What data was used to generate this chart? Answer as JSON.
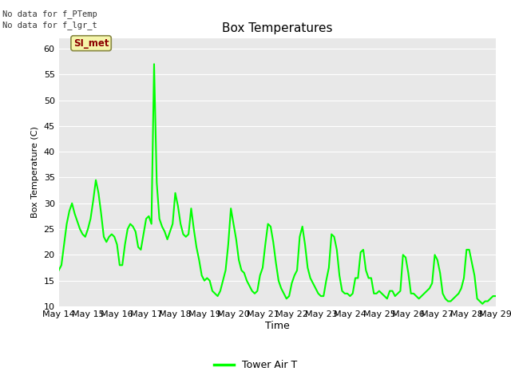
{
  "title": "Box Temperatures",
  "ylabel": "Box Temperature (C)",
  "xlabel": "Time",
  "ylim": [
    10,
    62
  ],
  "yticks": [
    10,
    15,
    20,
    25,
    30,
    35,
    40,
    45,
    50,
    55,
    60
  ],
  "plot_bg_color": "#e8e8e8",
  "fig_bg_color": "#ffffff",
  "line_color": "#00ff00",
  "line_width": 1.5,
  "no_data_text1": "No data for f_PTemp",
  "no_data_text2": "No data for f_lgr_t",
  "label_text": "SI_met",
  "legend_label": "Tower Air T",
  "x_tick_labels": [
    "May 14",
    "May 15",
    "May 16",
    "May 17",
    "May 18",
    "May 19",
    "May 20",
    "May 21",
    "May 22",
    "May 23",
    "May 24",
    "May 25",
    "May 26",
    "May 27",
    "May 28",
    "May 29"
  ],
  "tower_air_t": [
    17.0,
    18.0,
    22.0,
    26.0,
    28.5,
    30.0,
    28.0,
    26.5,
    25.0,
    24.0,
    23.5,
    25.0,
    27.0,
    30.5,
    34.5,
    32.0,
    28.0,
    23.5,
    22.5,
    23.5,
    24.0,
    23.5,
    22.0,
    18.0,
    18.0,
    22.0,
    25.0,
    26.0,
    25.5,
    24.5,
    21.5,
    21.0,
    24.0,
    27.0,
    27.5,
    26.0,
    57.0,
    34.0,
    27.0,
    25.5,
    24.5,
    23.0,
    24.5,
    26.0,
    32.0,
    29.5,
    26.0,
    24.0,
    23.5,
    24.0,
    29.0,
    25.0,
    21.5,
    19.0,
    16.0,
    15.0,
    15.5,
    15.0,
    13.0,
    12.5,
    12.0,
    13.0,
    15.0,
    17.0,
    22.0,
    29.0,
    26.0,
    23.0,
    19.0,
    17.0,
    16.5,
    15.0,
    14.0,
    13.0,
    12.5,
    13.0,
    16.0,
    17.5,
    22.0,
    26.0,
    25.5,
    22.5,
    18.5,
    15.0,
    13.5,
    12.5,
    11.5,
    12.0,
    14.5,
    16.0,
    17.0,
    23.5,
    25.5,
    22.0,
    17.5,
    15.5,
    14.5,
    13.5,
    12.5,
    12.0,
    12.0,
    15.0,
    17.5,
    24.0,
    23.5,
    21.0,
    16.0,
    13.0,
    12.5,
    12.5,
    12.0,
    12.5,
    15.5,
    15.5,
    20.5,
    21.0,
    17.0,
    15.5,
    15.5,
    12.5,
    12.5,
    13.0,
    12.5,
    12.0,
    11.5,
    13.0,
    13.0,
    12.0,
    12.5,
    13.0,
    20.0,
    19.5,
    16.5,
    12.5,
    12.5,
    12.0,
    11.5,
    12.0,
    12.5,
    13.0,
    13.5,
    14.5,
    20.0,
    19.0,
    16.5,
    12.5,
    11.5,
    11.0,
    11.0,
    11.5,
    12.0,
    12.5,
    13.5,
    15.5,
    21.0,
    21.0,
    18.5,
    16.0,
    11.5,
    11.0,
    10.5,
    11.0,
    11.0,
    11.5,
    12.0,
    12.0
  ]
}
